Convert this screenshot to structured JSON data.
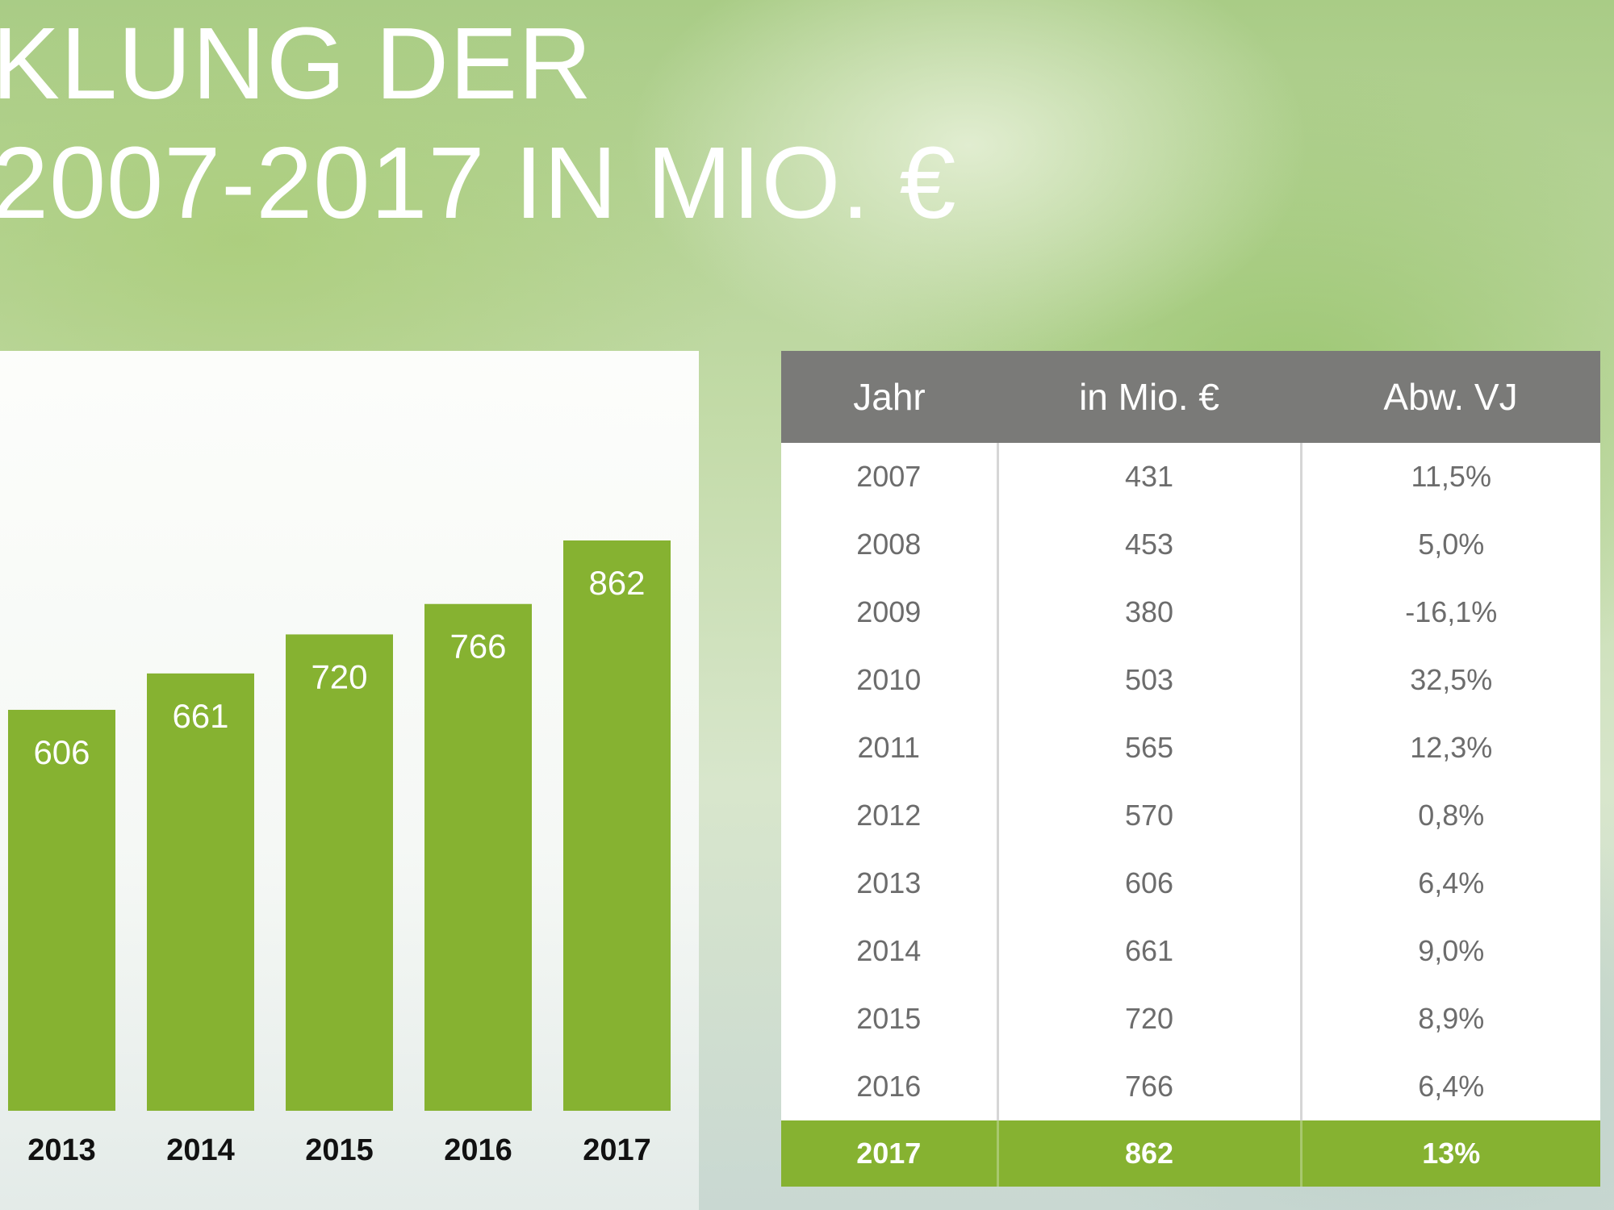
{
  "header": {
    "title_line1": "KLUNG DER",
    "title_line2": "2007-2017 IN MIO. €"
  },
  "colors": {
    "bar": "#86b231",
    "table_header": "#7a7a78",
    "table_highlight": "#86b231"
  },
  "chart_data": {
    "type": "bar",
    "categories": [
      "2013",
      "2014",
      "2015",
      "2016",
      "2017"
    ],
    "values": [
      606,
      661,
      720,
      766,
      862
    ],
    "data_labels": [
      "606",
      "661",
      "720",
      "766",
      "862"
    ],
    "title": "",
    "xlabel": "",
    "ylabel": "",
    "ylim": [
      0,
      1000
    ],
    "grid": false,
    "legend": "none"
  },
  "table": {
    "headers": [
      "Jahr",
      "in Mio. €",
      "Abw. VJ"
    ],
    "rows": [
      [
        "2007",
        "431",
        "11,5%"
      ],
      [
        "2008",
        "453",
        "5,0%"
      ],
      [
        "2009",
        "380",
        "-16,1%"
      ],
      [
        "2010",
        "503",
        "32,5%"
      ],
      [
        "2011",
        "565",
        "12,3%"
      ],
      [
        "2012",
        "570",
        "0,8%"
      ],
      [
        "2013",
        "606",
        "6,4%"
      ],
      [
        "2014",
        "661",
        "9,0%"
      ],
      [
        "2015",
        "720",
        "8,9%"
      ],
      [
        "2016",
        "766",
        "6,4%"
      ]
    ],
    "highlight_row": [
      "2017",
      "862",
      "13%"
    ]
  }
}
